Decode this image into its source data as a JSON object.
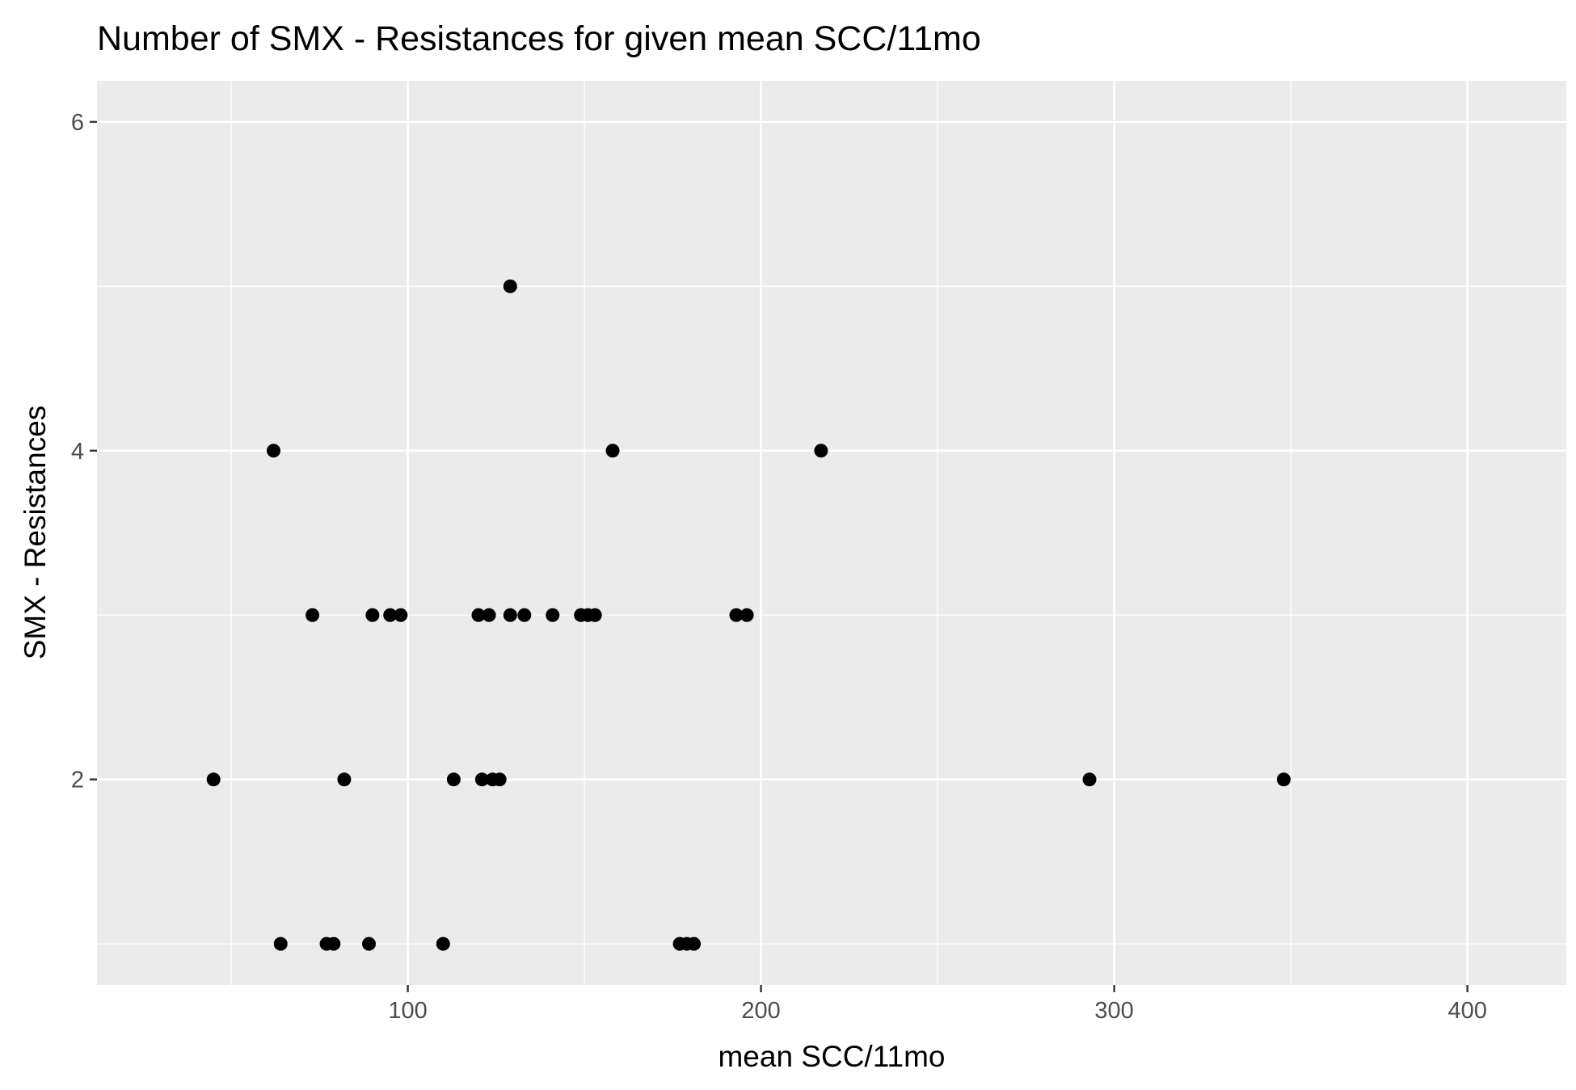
{
  "chart_data": {
    "type": "scatter",
    "title": "Number of SMX - Resistances for given mean SCC/11mo",
    "xlabel": "mean SCC/11mo",
    "ylabel": "SMX - Resistances",
    "xlim": [
      12,
      428
    ],
    "ylim": [
      0.75,
      6.25
    ],
    "x_ticks": [
      100,
      200,
      300,
      400
    ],
    "x_tick_labels": [
      "100",
      "200",
      "300",
      "400"
    ],
    "x_minor_ticks": [
      50,
      150,
      250,
      350
    ],
    "y_ticks": [
      2,
      4,
      6
    ],
    "y_tick_labels": [
      "2",
      "4",
      "6"
    ],
    "y_minor_ticks": [
      1,
      3,
      5
    ],
    "grid": true,
    "background": "#ebebeb",
    "grid_color": "#ffffff",
    "point_color": "#000000",
    "series": [
      {
        "points": [
          {
            "x": 62,
            "y": 4
          },
          {
            "x": 129,
            "y": 5
          },
          {
            "x": 158,
            "y": 4
          },
          {
            "x": 217,
            "y": 4
          },
          {
            "x": 73,
            "y": 3
          },
          {
            "x": 90,
            "y": 3
          },
          {
            "x": 95,
            "y": 3
          },
          {
            "x": 98,
            "y": 3
          },
          {
            "x": 120,
            "y": 3
          },
          {
            "x": 123,
            "y": 3
          },
          {
            "x": 129,
            "y": 3
          },
          {
            "x": 133,
            "y": 3
          },
          {
            "x": 141,
            "y": 3
          },
          {
            "x": 149,
            "y": 3
          },
          {
            "x": 151,
            "y": 3
          },
          {
            "x": 153,
            "y": 3
          },
          {
            "x": 193,
            "y": 3
          },
          {
            "x": 196,
            "y": 3
          },
          {
            "x": 45,
            "y": 2
          },
          {
            "x": 82,
            "y": 2
          },
          {
            "x": 113,
            "y": 2
          },
          {
            "x": 121,
            "y": 2
          },
          {
            "x": 124,
            "y": 2
          },
          {
            "x": 126,
            "y": 2
          },
          {
            "x": 293,
            "y": 2
          },
          {
            "x": 348,
            "y": 2
          },
          {
            "x": 64,
            "y": 1
          },
          {
            "x": 77,
            "y": 1
          },
          {
            "x": 79,
            "y": 1
          },
          {
            "x": 89,
            "y": 1
          },
          {
            "x": 110,
            "y": 1
          },
          {
            "x": 177,
            "y": 1
          },
          {
            "x": 179,
            "y": 1
          },
          {
            "x": 181,
            "y": 1
          }
        ]
      }
    ]
  }
}
